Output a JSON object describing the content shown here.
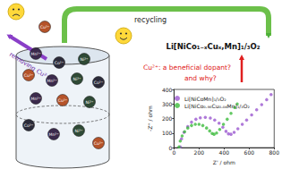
{
  "chart_data": {
    "type": "scatter",
    "x_label": "Z' / ohm",
    "y_label": "-Z'' / ohm",
    "xlim": [
      0,
      800
    ],
    "xticks": [
      0,
      200,
      400,
      600,
      800
    ],
    "ylim": [
      0,
      400
    ],
    "yticks": [
      0,
      100,
      200,
      300,
      400
    ],
    "grid": false,
    "legend": "upper left",
    "marker": "circle",
    "series": [
      {
        "name": "Li[NiCoMn]₁/₃O₂",
        "color": "#9b59d0",
        "x": [
          50,
          60,
          80,
          110,
          140,
          175,
          210,
          250,
          290,
          325,
          360,
          390,
          415,
          435,
          455,
          480,
          510,
          545,
          580,
          620,
          660,
          700,
          740,
          775
        ],
        "values": [
          5,
          60,
          105,
          145,
          175,
          195,
          205,
          208,
          203,
          190,
          168,
          140,
          112,
          95,
          92,
          105,
          130,
          160,
          190,
          225,
          260,
          295,
          330,
          365
        ]
      },
      {
        "name": "Li[NiCo₀.₉₆Cu₀.₀₄Mn]₁/₃O₂",
        "color": "#3dbb3d",
        "x": [
          40,
          50,
          65,
          85,
          110,
          140,
          170,
          200,
          230,
          260,
          285,
          305,
          320,
          340,
          365,
          395,
          425,
          455,
          485,
          505
        ],
        "values": [
          5,
          45,
          80,
          110,
          135,
          152,
          160,
          160,
          152,
          135,
          115,
          98,
          92,
          100,
          125,
          160,
          195,
          235,
          275,
          300
        ]
      }
    ]
  },
  "diagram": {
    "removing": "removing Cu²⁺",
    "recycling": "recycling",
    "product": "Li[NiCo₁₋ₓCuₓ,Mn]₁/₃O₂",
    "question_line1": "Cu²⁺: a beneficial dopant?",
    "question_line2": "and why?",
    "ions": [
      {
        "label": "Cu²⁺",
        "color": "#b5532a"
      },
      {
        "label": "Mn²⁺",
        "color": "#3b2a4c"
      },
      {
        "label": "Co²⁺",
        "color": "#2b2b3a"
      },
      {
        "label": "Ni²⁺",
        "color": "#2f4a36"
      },
      {
        "label": "Cu²⁺",
        "color": "#b5532a"
      },
      {
        "label": "Mn²⁺",
        "color": "#3b2a4c"
      },
      {
        "label": "Ni²⁺",
        "color": "#2f4a36"
      },
      {
        "label": "Co²⁺",
        "color": "#2b2b3a"
      },
      {
        "label": "Mn²⁺",
        "color": "#3b2a4c"
      },
      {
        "label": "Cu²⁺",
        "color": "#b5532a"
      },
      {
        "label": "Ni²⁺",
        "color": "#2f4a36"
      },
      {
        "label": "Co²⁺",
        "color": "#2b2b3a"
      },
      {
        "label": "Mn²⁺",
        "color": "#3b2a4c"
      },
      {
        "label": "Ni²⁺",
        "color": "#2f4a36"
      },
      {
        "label": "Cu²⁺",
        "color": "#b5532a"
      }
    ]
  }
}
